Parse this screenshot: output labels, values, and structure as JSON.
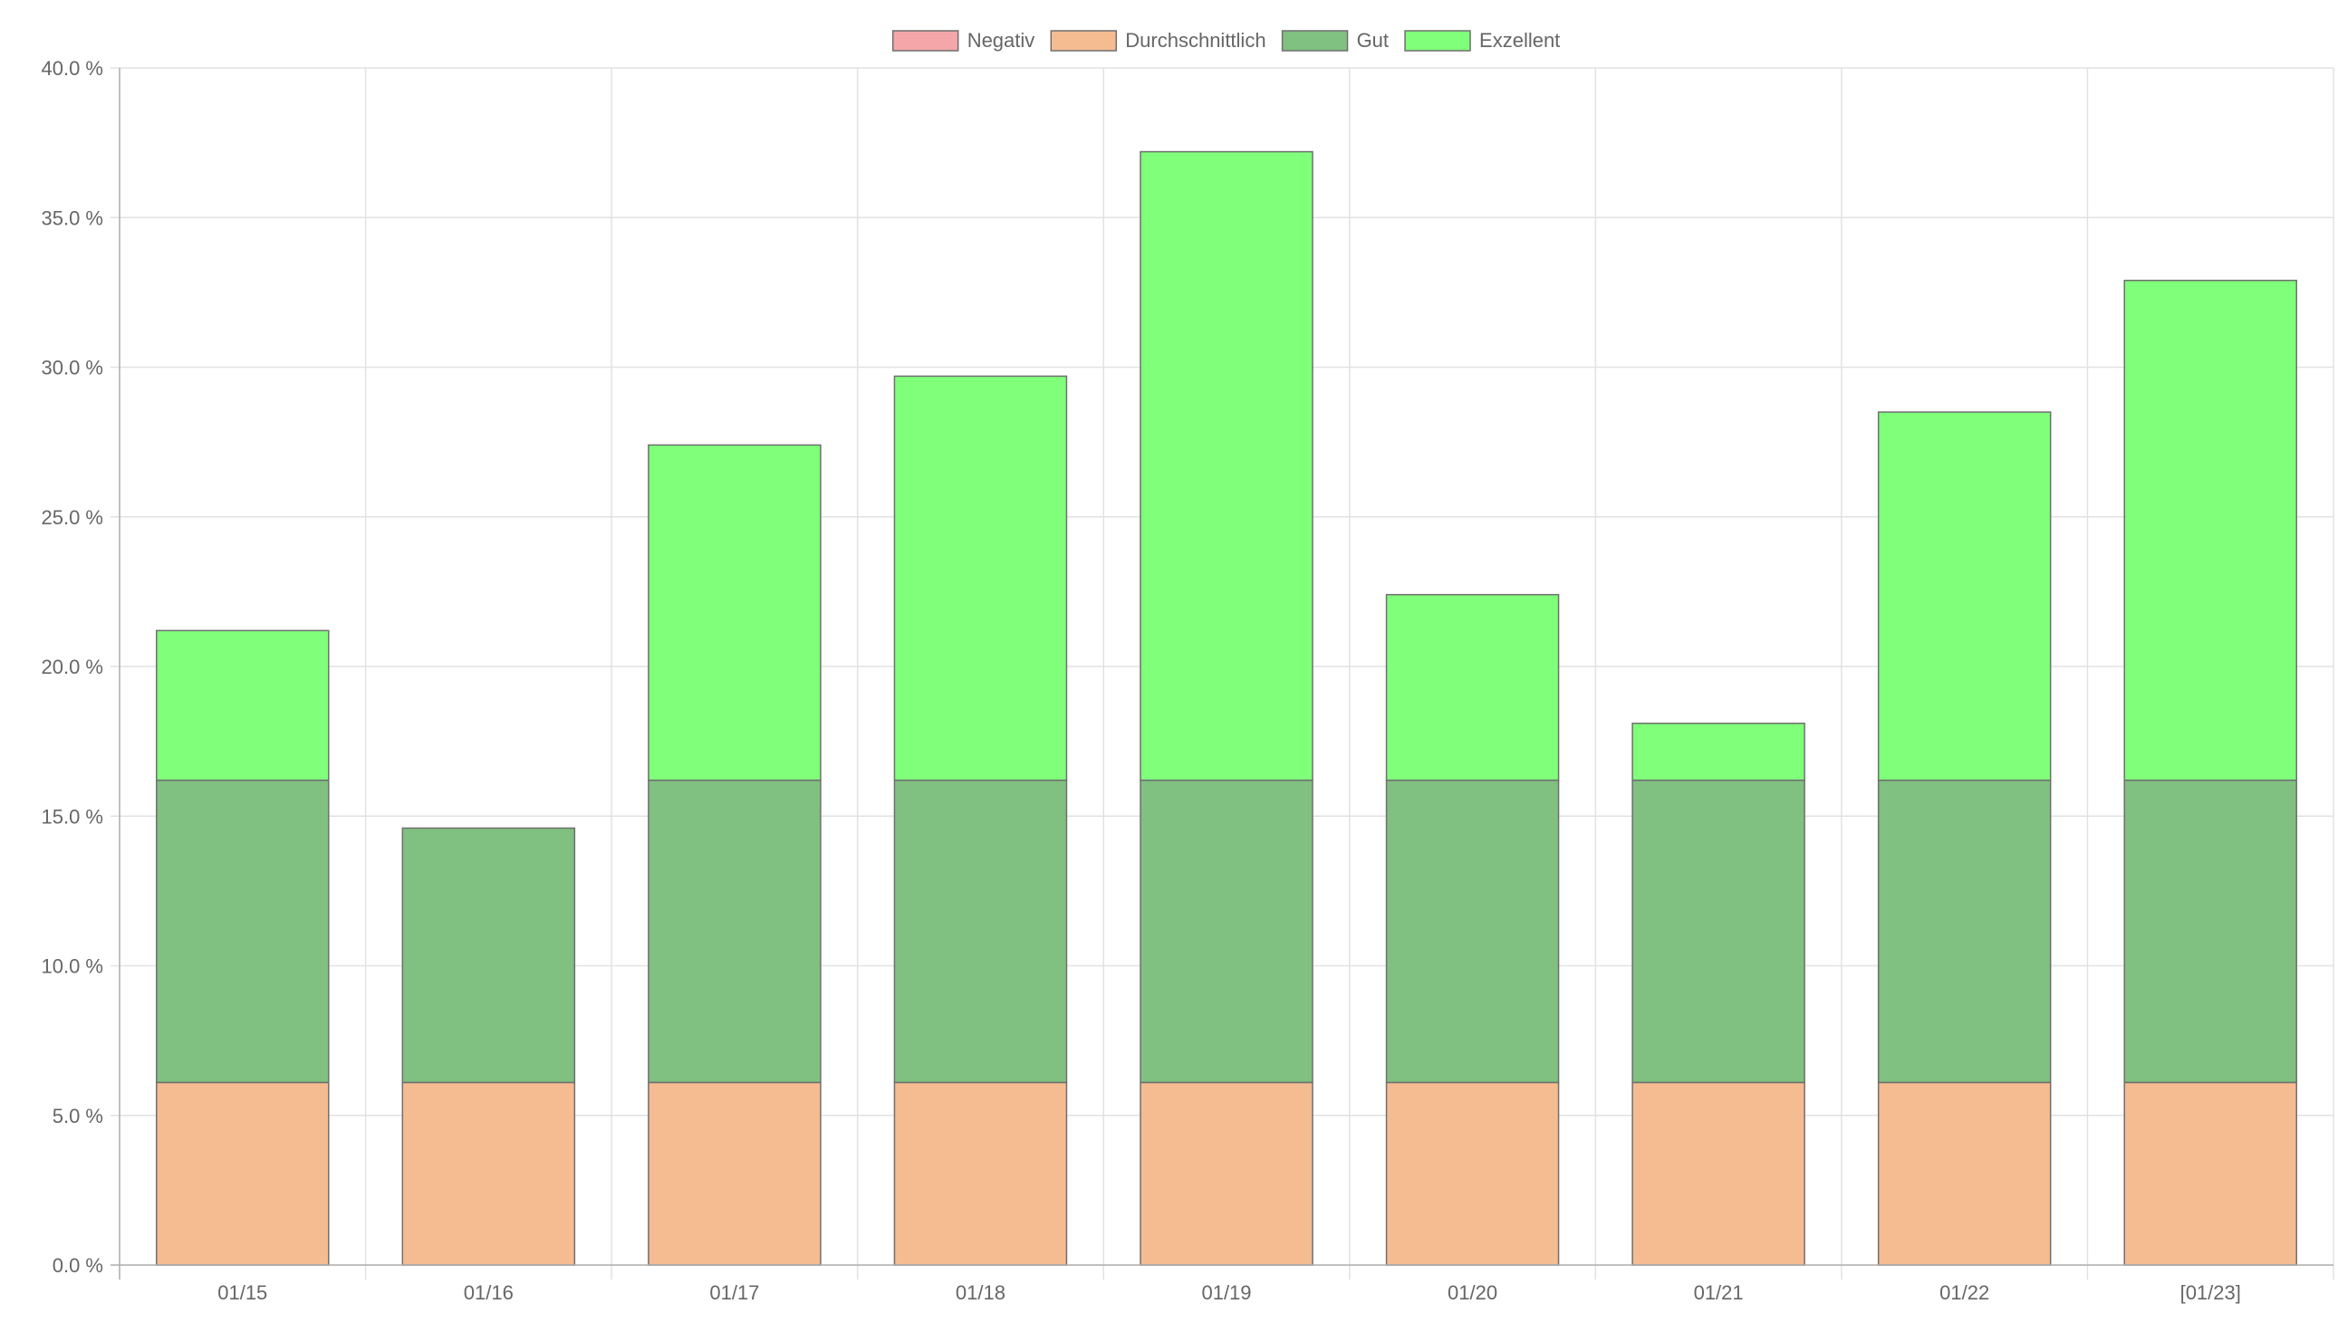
{
  "chart_data": {
    "type": "bar",
    "stacked": true,
    "title": "",
    "xlabel": "",
    "ylabel": "",
    "categories": [
      "01/15",
      "01/16",
      "01/17",
      "01/18",
      "01/19",
      "01/20",
      "01/21",
      "01/22",
      "[01/23]"
    ],
    "ylim": [
      0,
      40
    ],
    "y_ticks": [
      "0.0 %",
      "5.0 %",
      "10.0 %",
      "15.0 %",
      "20.0 %",
      "25.0 %",
      "30.0 %",
      "35.0 %",
      "40.0 %"
    ],
    "y_tick_values": [
      0,
      5,
      10,
      15,
      20,
      25,
      30,
      35,
      40
    ],
    "grid": true,
    "legend_position": "top-center",
    "series": [
      {
        "name": "Negativ",
        "color": "#f4a6a9",
        "values": [
          0,
          0,
          0,
          0,
          0,
          0,
          0,
          0,
          0
        ]
      },
      {
        "name": "Durchschnittlich",
        "color": "#f5bc92",
        "values": [
          6.1,
          6.1,
          6.1,
          6.1,
          6.1,
          6.1,
          6.1,
          6.1,
          6.1
        ]
      },
      {
        "name": "Gut",
        "color": "#80c080",
        "values": [
          10.1,
          8.5,
          10.1,
          10.1,
          10.1,
          10.1,
          10.1,
          10.1,
          10.1
        ]
      },
      {
        "name": "Exzellent",
        "color": "#80ff7a",
        "values": [
          5.0,
          0,
          11.2,
          13.5,
          21.0,
          6.2,
          1.9,
          12.3,
          16.7
        ]
      }
    ]
  }
}
